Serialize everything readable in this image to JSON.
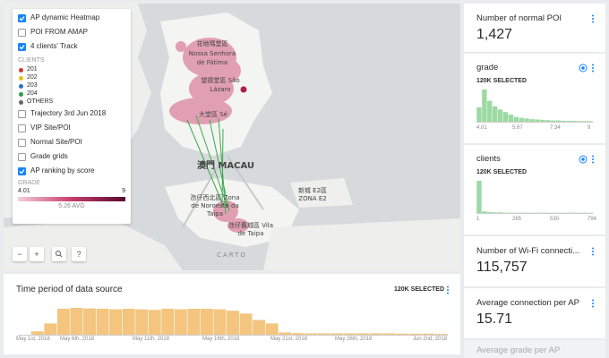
{
  "layers_panel": {
    "top_layers": [
      {
        "label": "AP dynamic Heatmap",
        "checked": true
      },
      {
        "label": "POI FROM AMAP",
        "checked": false
      },
      {
        "label": "4 clients' Track",
        "checked": true
      }
    ],
    "clients_legend": {
      "title": "CLIENTS",
      "items": [
        {
          "label": "201",
          "color": "#d9342b"
        },
        {
          "label": "202",
          "color": "#e8c21a"
        },
        {
          "label": "203",
          "color": "#2f6fd1"
        },
        {
          "label": "204",
          "color": "#2e9e46"
        },
        {
          "label": "OTHERS",
          "color": "#666666"
        }
      ]
    },
    "bottom_layers": [
      {
        "label": "Trajectory 3rd Jun 2018",
        "checked": false
      },
      {
        "label": "VIP Site/POI",
        "checked": false
      },
      {
        "label": "Normal Site/POI",
        "checked": false
      },
      {
        "label": "Grade grids",
        "checked": false
      },
      {
        "label": "AP ranking by score",
        "checked": true
      }
    ],
    "grade_legend": {
      "title": "GRADE",
      "min": "4.01",
      "max": "9",
      "avg": "5.26 AVG"
    }
  },
  "map": {
    "labels": [
      "花地瑪堂區",
      "Nossa Senhora",
      "de Fátima",
      "望德堂區 São",
      "Lázaro",
      "大堂區 Sé",
      "澳門 MACAU",
      "新城 E2區",
      "ZONA E2",
      "氹仔西北區 Zona",
      "de Noroeste da",
      "Taipa",
      "氹仔舊城區 Vila",
      "de Taipa"
    ],
    "attribution": "CARTO",
    "controls": [
      "−",
      "+",
      "?"
    ]
  },
  "time_widget": {
    "title": "Time period of data source",
    "selected": "120K SELECTED",
    "x_labels": [
      "May 1st, 2018",
      "May 6th, 2018",
      "May 11th, 2018",
      "May 16th, 2018",
      "May 21st, 2018",
      "May 26th, 2018",
      "Jun 2nd, 2018"
    ],
    "bars": [
      0,
      12,
      40,
      92,
      95,
      93,
      92,
      90,
      92,
      90,
      88,
      92,
      90,
      92,
      92,
      90,
      85,
      75,
      52,
      40,
      8,
      6,
      5,
      5,
      5,
      5,
      5,
      5,
      5,
      4,
      4,
      4,
      3
    ]
  },
  "widgets": {
    "poi": {
      "title": "Number of normal POI",
      "value": "1,427"
    },
    "grade": {
      "title": "grade",
      "selected": "120K SELECTED",
      "x_labels": [
        "4.01",
        "5.67",
        "7.34",
        "9"
      ],
      "bars": [
        45,
        100,
        65,
        48,
        38,
        30,
        22,
        15,
        12,
        10,
        8,
        7,
        6,
        5,
        4,
        4,
        3,
        3,
        3,
        2,
        2,
        2
      ]
    },
    "clients": {
      "title": "clients",
      "selected": "120K SELECTED",
      "x_labels": [
        "1",
        "265",
        "530",
        "794"
      ],
      "bars": [
        100,
        5,
        3,
        2,
        2,
        1,
        1,
        1,
        1,
        1,
        1,
        1,
        1,
        1,
        1,
        1,
        1,
        1,
        1,
        1,
        1,
        1
      ]
    },
    "wifi": {
      "title": "Number of Wi-Fi connecti...",
      "value": "115,757"
    },
    "avg": {
      "title": "Average connection per AP",
      "value": "15.71"
    },
    "grade_avg": {
      "title": "Average grade per AP"
    }
  }
}
